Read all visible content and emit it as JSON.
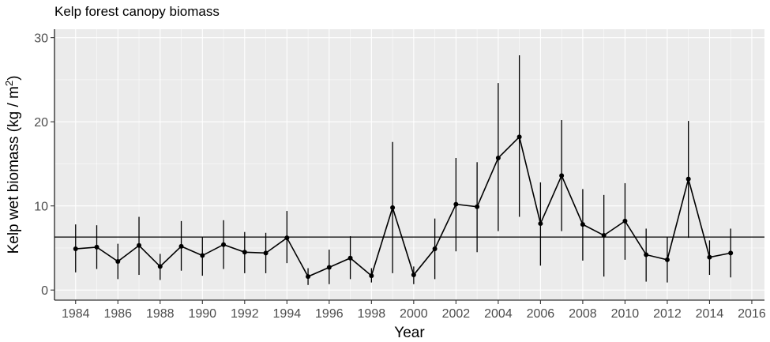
{
  "chart_data": {
    "type": "line",
    "title": "Kelp forest canopy biomass",
    "xlabel": "Year",
    "ylabel": "Kelp wet biomass (kg / m",
    "ylabel_superscript": "2",
    "ylabel_suffix": ")",
    "xlim": [
      1983,
      2016.6
    ],
    "ylim": [
      -1.2,
      31
    ],
    "xticks": [
      1984,
      1986,
      1988,
      1990,
      1992,
      1994,
      1996,
      1998,
      2000,
      2002,
      2004,
      2006,
      2008,
      2010,
      2012,
      2014,
      2016
    ],
    "yticks": [
      0,
      10,
      20,
      30
    ],
    "grid": true,
    "reference_line": 6.3,
    "series": [
      {
        "x": [
          1984,
          1985,
          1986,
          1987,
          1988,
          1989,
          1990,
          1991,
          1992,
          1993,
          1994,
          1995,
          1996,
          1997,
          1998,
          1999,
          2000,
          2001,
          2002,
          2003,
          2004,
          2005,
          2006,
          2007,
          2008,
          2009,
          2010,
          2011,
          2012,
          2013,
          2014,
          2015
        ],
        "y": [
          4.9,
          5.1,
          3.4,
          5.3,
          2.8,
          5.2,
          4.1,
          5.4,
          4.5,
          4.4,
          6.2,
          1.6,
          2.7,
          3.8,
          1.7,
          9.8,
          1.8,
          4.9,
          10.2,
          9.9,
          15.7,
          18.2,
          7.9,
          13.6,
          7.8,
          6.5,
          8.2,
          4.2,
          3.6,
          13.2,
          3.9,
          4.4
        ],
        "ymin": [
          2.1,
          2.5,
          1.3,
          1.8,
          1.2,
          2.3,
          1.7,
          2.5,
          2.0,
          2.0,
          3.2,
          0.6,
          0.7,
          1.3,
          0.9,
          2.0,
          0.7,
          1.3,
          4.6,
          4.5,
          7.0,
          8.7,
          2.9,
          7.0,
          3.5,
          1.6,
          3.6,
          1.0,
          0.9,
          6.2,
          1.8,
          1.5
        ],
        "ymax": [
          7.8,
          7.7,
          5.5,
          8.7,
          4.3,
          8.2,
          6.3,
          8.3,
          6.9,
          6.8,
          9.4,
          2.6,
          4.8,
          6.4,
          2.6,
          17.6,
          2.8,
          8.5,
          15.7,
          15.2,
          24.6,
          27.9,
          12.8,
          20.2,
          12.0,
          11.3,
          12.7,
          7.3,
          6.3,
          20.1,
          5.9,
          7.3
        ]
      }
    ]
  }
}
